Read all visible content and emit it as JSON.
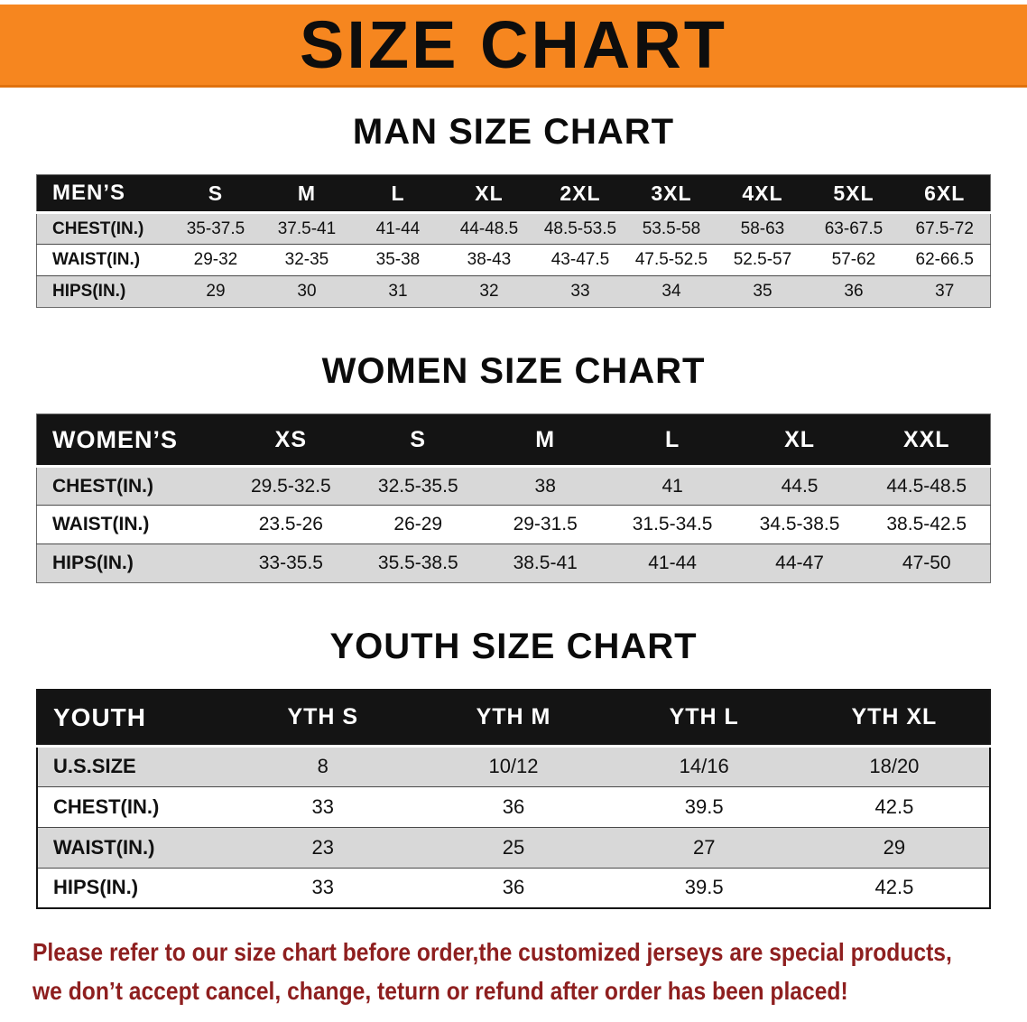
{
  "banner": {
    "title": "SIZE CHART"
  },
  "sections": [
    {
      "id": "mens",
      "title": "MAN SIZE CHART",
      "header": [
        "MEN’S",
        "S",
        "M",
        "L",
        "XL",
        "2XL",
        "3XL",
        "4XL",
        "5XL",
        "6XL"
      ],
      "rows": [
        [
          "CHEST(IN.)",
          "35-37.5",
          "37.5-41",
          "41-44",
          "44-48.5",
          "48.5-53.5",
          "53.5-58",
          "58-63",
          "63-67.5",
          "67.5-72"
        ],
        [
          "WAIST(IN.)",
          "29-32",
          "32-35",
          "35-38",
          "38-43",
          "43-47.5",
          "47.5-52.5",
          "52.5-57",
          "57-62",
          "62-66.5"
        ],
        [
          "HIPS(IN.)",
          "29",
          "30",
          "31",
          "32",
          "33",
          "34",
          "35",
          "36",
          "37"
        ]
      ]
    },
    {
      "id": "womens",
      "title": "WOMEN SIZE CHART",
      "header": [
        "WOMEN’S",
        "XS",
        "S",
        "M",
        "L",
        "XL",
        "XXL"
      ],
      "rows": [
        [
          "CHEST(IN.)",
          "29.5-32.5",
          "32.5-35.5",
          "38",
          "41",
          "44.5",
          "44.5-48.5"
        ],
        [
          "WAIST(IN.)",
          "23.5-26",
          "26-29",
          "29-31.5",
          "31.5-34.5",
          "34.5-38.5",
          "38.5-42.5"
        ],
        [
          "HIPS(IN.)",
          "33-35.5",
          "35.5-38.5",
          "38.5-41",
          "41-44",
          "44-47",
          "47-50"
        ]
      ]
    },
    {
      "id": "youth",
      "title": "YOUTH SIZE CHART",
      "header": [
        "YOUTH",
        "YTH S",
        "YTH M",
        "YTH L",
        "YTH XL"
      ],
      "rows": [
        [
          "U.S.SIZE",
          "8",
          "10/12",
          "14/16",
          "18/20"
        ],
        [
          "CHEST(IN.)",
          "33",
          "36",
          "39.5",
          "42.5"
        ],
        [
          "WAIST(IN.)",
          "23",
          "25",
          "27",
          "29"
        ],
        [
          "HIPS(IN.)",
          "33",
          "36",
          "39.5",
          "42.5"
        ]
      ]
    }
  ],
  "footer": {
    "line1": "Please refer to our size chart before order,the customized jerseys are special products,",
    "line2": "we don’t accept cancel, change, teturn or refund after order has been placed!"
  },
  "colors": {
    "banner_bg": "#F6861F",
    "banner_border": "#E0720E",
    "banner_text": "#0D0D0D",
    "table_header_bg": "#141414",
    "table_header_text": "#FFFFFF",
    "row_shade": "#D8D8D8",
    "row_line": "#4A4A4A",
    "footer_text": "#8E1F1F"
  }
}
